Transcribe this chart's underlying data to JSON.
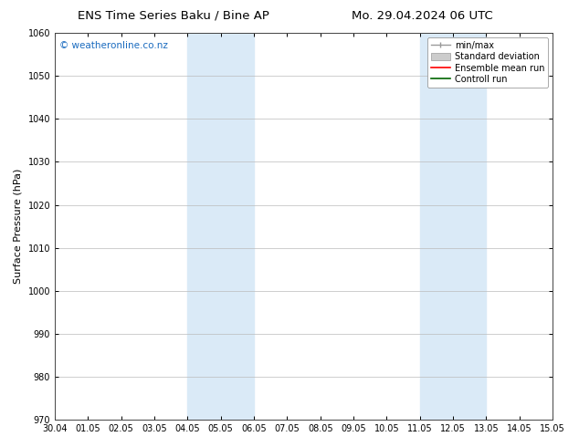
{
  "title_left": "ENS Time Series Baku / Bine AP",
  "title_right": "Mo. 29.04.2024 06 UTC",
  "ylabel": "Surface Pressure (hPa)",
  "ylim": [
    970,
    1060
  ],
  "yticks": [
    970,
    980,
    990,
    1000,
    1010,
    1020,
    1030,
    1040,
    1050,
    1060
  ],
  "x_labels": [
    "30.04",
    "01.05",
    "02.05",
    "03.05",
    "04.05",
    "05.05",
    "06.05",
    "07.05",
    "08.05",
    "09.05",
    "10.05",
    "11.05",
    "12.05",
    "13.05",
    "14.05",
    "15.05"
  ],
  "x_positions": [
    0,
    1,
    2,
    3,
    4,
    5,
    6,
    7,
    8,
    9,
    10,
    11,
    12,
    13,
    14,
    15
  ],
  "shaded_regions": [
    {
      "xmin": 4,
      "xmax": 6
    },
    {
      "xmin": 11,
      "xmax": 13
    }
  ],
  "shaded_color": "#daeaf7",
  "watermark": "© weatheronline.co.nz",
  "watermark_color": "#1a6bbf",
  "bg_color": "#ffffff",
  "grid_color": "#bbbbbb",
  "spine_color": "#444444",
  "title_fontsize": 9.5,
  "tick_fontsize": 7,
  "ylabel_fontsize": 8,
  "legend_fontsize": 7,
  "watermark_fontsize": 7.5
}
